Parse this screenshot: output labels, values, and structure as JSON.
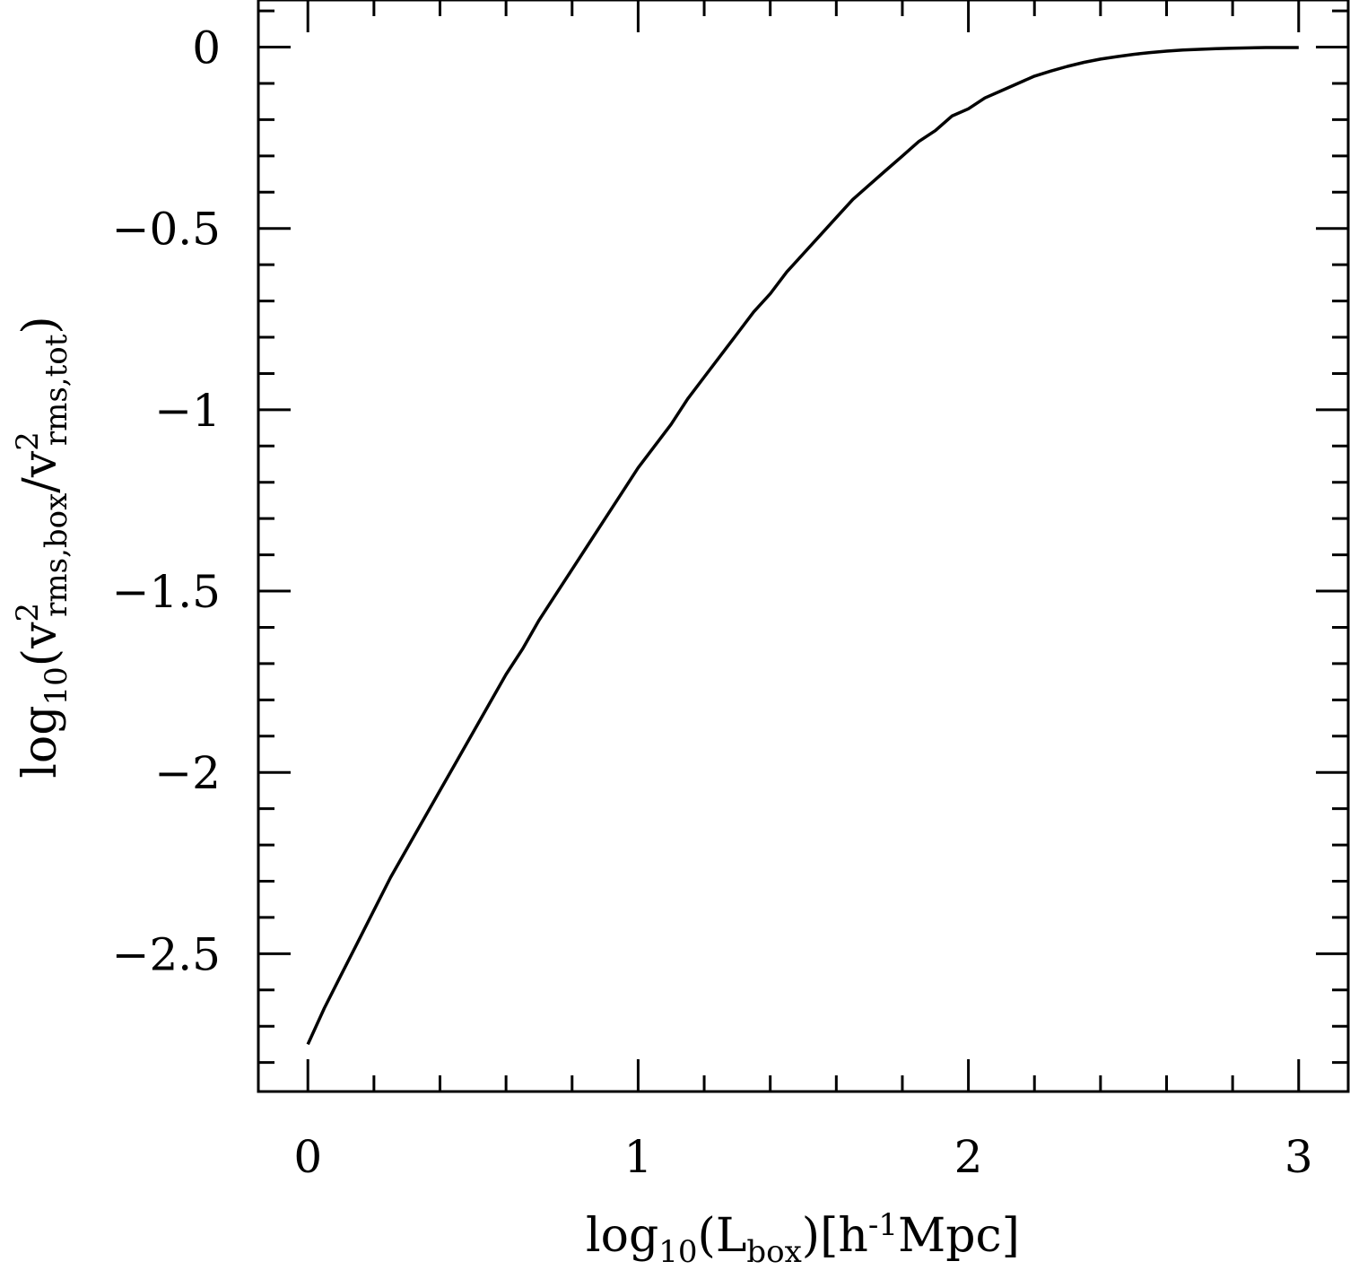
{
  "chart_data": {
    "type": "line",
    "title": "",
    "xlabel": {
      "pre": "log",
      "pre_sub": "10",
      "paren_open": "(",
      "main": "L",
      "main_sub": "box",
      "paren_close": ")",
      "unit_open": "[h",
      "unit_sup": "-1",
      "unit_rest": "Mpc]"
    },
    "ylabel": {
      "pre": "log",
      "pre_sub": "10",
      "paren_open": "(",
      "num": "v",
      "num_sup": "2",
      "num_sub": "rms,box",
      "slash": "/",
      "den": "v",
      "den_sup": "2",
      "den_sub": "rms,tot",
      "paren_close": ")"
    },
    "xlim": [
      -0.15,
      3.15
    ],
    "ylim": [
      -2.88,
      0.13
    ],
    "x_ticks": [
      {
        "value": 0,
        "label": "0"
      },
      {
        "value": 1,
        "label": "1"
      },
      {
        "value": 2,
        "label": "2"
      },
      {
        "value": 3,
        "label": "3"
      }
    ],
    "y_ticks": [
      {
        "value": 0,
        "label": "0"
      },
      {
        "value": -0.5,
        "label": "−0.5"
      },
      {
        "value": -1,
        "label": "−1"
      },
      {
        "value": -1.5,
        "label": "−1.5"
      },
      {
        "value": -2,
        "label": "−2"
      },
      {
        "value": -2.5,
        "label": "−2.5"
      }
    ],
    "x_minor_step": 0.2,
    "y_minor_step": 0.1,
    "grid": false,
    "legend": "none",
    "series": [
      {
        "color": "#000000",
        "x": [
          0,
          0.05,
          0.1,
          0.15,
          0.2,
          0.25,
          0.3,
          0.35,
          0.4,
          0.45,
          0.5,
          0.55,
          0.6,
          0.65,
          0.7,
          0.75,
          0.8,
          0.85,
          0.9,
          0.95,
          1.0,
          1.05,
          1.1,
          1.15,
          1.2,
          1.25,
          1.3,
          1.35,
          1.4,
          1.45,
          1.5,
          1.55,
          1.6,
          1.65,
          1.7,
          1.75,
          1.8,
          1.85,
          1.9,
          1.95,
          2.0,
          2.05,
          2.1,
          2.15,
          2.2,
          2.25,
          2.3,
          2.35,
          2.4,
          2.45,
          2.5,
          2.55,
          2.6,
          2.65,
          2.7,
          2.75,
          2.8,
          2.85,
          2.9,
          2.95,
          3.0
        ],
        "y": [
          -2.75,
          -2.65,
          -2.56,
          -2.47,
          -2.38,
          -2.29,
          -2.21,
          -2.13,
          -2.05,
          -1.97,
          -1.89,
          -1.81,
          -1.73,
          -1.66,
          -1.58,
          -1.51,
          -1.44,
          -1.37,
          -1.3,
          -1.23,
          -1.16,
          -1.1,
          -1.04,
          -0.97,
          -0.91,
          -0.85,
          -0.79,
          -0.73,
          -0.68,
          -0.62,
          -0.57,
          -0.52,
          -0.47,
          -0.42,
          -0.38,
          -0.34,
          -0.3,
          -0.26,
          -0.23,
          -0.19,
          -0.17,
          -0.14,
          -0.12,
          -0.1,
          -0.08,
          -0.066,
          -0.053,
          -0.042,
          -0.033,
          -0.026,
          -0.02,
          -0.015,
          -0.011,
          -0.008,
          -0.006,
          -0.004,
          -0.003,
          -0.002,
          -0.001,
          -0.001,
          -0.001
        ]
      }
    ]
  }
}
